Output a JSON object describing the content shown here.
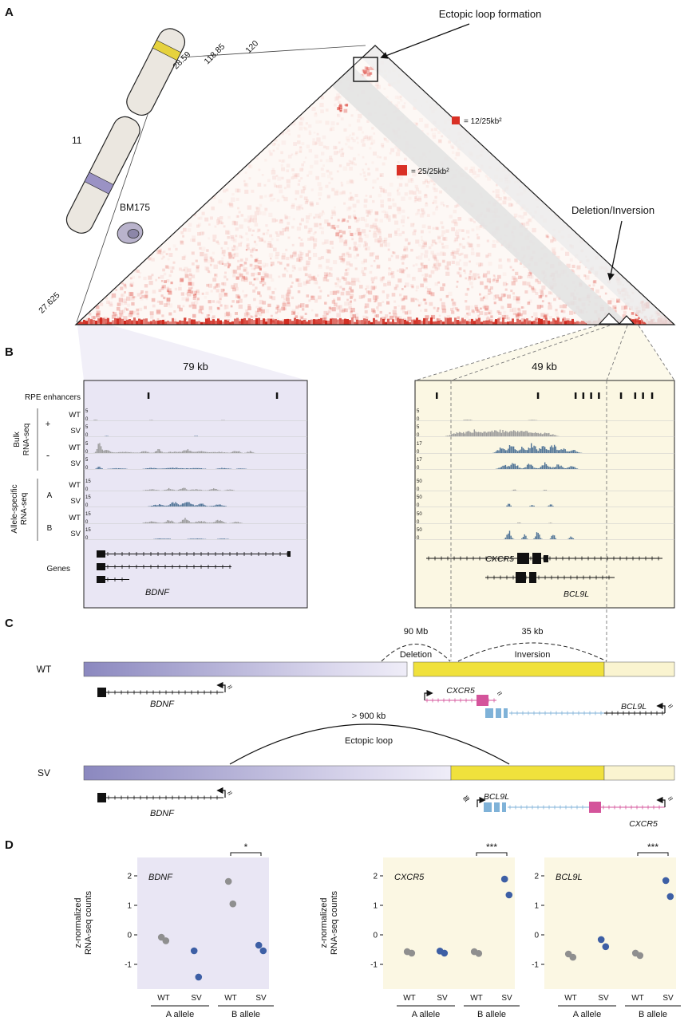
{
  "figure": {
    "panel_a_label": "A",
    "panel_b_label": "B",
    "panel_c_label": "C",
    "panel_d_label": "D"
  },
  "panel_a": {
    "chromosome_label": "11",
    "cell_line": "BM175",
    "ectopic_annotation": "Ectopic loop formation",
    "sv_annotation": "Deletion/Inversion",
    "legend_small": "= 12/25kb²",
    "legend_large": "= 25/25kb²",
    "heat_color": "#d93025",
    "tick_120": "120",
    "tick_118": "118.85",
    "tick_28": "28.59",
    "tick_27": "27.625"
  },
  "panel_b": {
    "left_title": "79 kb",
    "right_title": "49 kb",
    "enhancer_label": "RPE enhancers",
    "bulk_label_1": "Bulk",
    "bulk_label_2": "RNA-seq",
    "allele_label_1": "Allele-specific",
    "allele_label_2": "RNA-seq",
    "plus": "+",
    "minus": "-",
    "allele_a": "A",
    "allele_b": "B",
    "wt": "WT",
    "sv": "SV",
    "genes_label": "Genes",
    "gene_bdnf": "BDNF",
    "gene_cxcr5": "CXCR5",
    "gene_bcl9l": "BCL9L",
    "colors": {
      "wt_signal": "#9b9b9b",
      "sv_signal": "#4f7396",
      "enhancer": "#111111",
      "left_bg": "#e9e6f4",
      "right_bg": "#fbf7e3"
    },
    "enhancers_left": [
      0.285,
      0.86
    ],
    "enhancers_right": [
      0.08,
      0.47,
      0.615,
      0.645,
      0.675,
      0.705,
      0.79,
      0.845,
      0.875,
      0.91
    ],
    "tracks_left": [
      {
        "scale": "5",
        "color": "#9b9b9b",
        "peaks": [
          [
            0.05,
            0.012,
            0.07
          ],
          [
            0.3,
            0.01,
            0.05
          ],
          [
            0.62,
            0.01,
            0.05
          ]
        ]
      },
      {
        "scale": "5",
        "color": "#4f7396",
        "peaks": [
          [
            0.1,
            0.01,
            0.05
          ],
          [
            0.5,
            0.012,
            0.05
          ]
        ]
      },
      {
        "scale": "5",
        "color": "#9b9b9b",
        "peaks": [
          [
            0.066,
            0.012,
            1.0
          ],
          [
            0.1,
            0.02,
            0.32
          ],
          [
            0.18,
            0.05,
            0.13
          ],
          [
            0.27,
            0.02,
            0.2
          ],
          [
            0.33,
            0.015,
            0.38
          ],
          [
            0.4,
            0.04,
            0.16
          ],
          [
            0.46,
            0.02,
            0.42
          ],
          [
            0.52,
            0.03,
            0.2
          ],
          [
            0.6,
            0.04,
            0.13
          ],
          [
            0.68,
            0.02,
            0.27
          ],
          [
            0.74,
            0.015,
            0.2
          ]
        ]
      },
      {
        "scale": "5",
        "color": "#4f7396",
        "peaks": [
          [
            0.066,
            0.012,
            0.22
          ],
          [
            0.15,
            0.04,
            0.09
          ],
          [
            0.3,
            0.03,
            0.11
          ],
          [
            0.4,
            0.05,
            0.13
          ],
          [
            0.5,
            0.04,
            0.11
          ],
          [
            0.62,
            0.03,
            0.11
          ],
          [
            0.7,
            0.02,
            0.09
          ]
        ]
      },
      {
        "scale": "15",
        "color": "#9b9b9b",
        "peaks": [
          [
            0.3,
            0.03,
            0.13
          ],
          [
            0.38,
            0.02,
            0.24
          ],
          [
            0.44,
            0.015,
            0.38
          ],
          [
            0.5,
            0.03,
            0.16
          ],
          [
            0.58,
            0.02,
            0.22
          ],
          [
            0.65,
            0.02,
            0.13
          ]
        ]
      },
      {
        "scale": "15",
        "color": "#4f7396",
        "peaks": [
          [
            0.33,
            0.03,
            0.22
          ],
          [
            0.4,
            0.02,
            0.48
          ],
          [
            0.46,
            0.025,
            0.55
          ],
          [
            0.52,
            0.02,
            0.33
          ],
          [
            0.6,
            0.03,
            0.2
          ]
        ]
      },
      {
        "scale": "15",
        "color": "#9b9b9b",
        "peaks": [
          [
            0.3,
            0.03,
            0.2
          ],
          [
            0.38,
            0.02,
            0.33
          ],
          [
            0.45,
            0.02,
            0.5
          ],
          [
            0.52,
            0.03,
            0.25
          ],
          [
            0.6,
            0.025,
            0.33
          ],
          [
            0.68,
            0.02,
            0.17
          ]
        ]
      },
      {
        "scale": "15",
        "color": "#4f7396",
        "peaks": [
          [
            0.35,
            0.04,
            0.09
          ],
          [
            0.5,
            0.04,
            0.08
          ],
          [
            0.62,
            0.03,
            0.07
          ]
        ]
      }
    ],
    "tracks_right": [
      {
        "scale": "5",
        "color": "#9b9b9b",
        "peaks": [
          [
            0.2,
            0.02,
            0.08
          ],
          [
            0.45,
            0.02,
            0.06
          ]
        ]
      },
      {
        "scale": "5",
        "color": "#9b9b9b",
        "peaks": [
          [
            0.16,
            0.03,
            0.35
          ],
          [
            0.22,
            0.04,
            0.5
          ],
          [
            0.3,
            0.06,
            0.55
          ],
          [
            0.38,
            0.05,
            0.5
          ],
          [
            0.45,
            0.04,
            0.4
          ],
          [
            0.51,
            0.03,
            0.28
          ]
        ]
      },
      {
        "scale": "17",
        "color": "#4f7396",
        "peaks": [
          [
            0.33,
            0.018,
            0.55
          ],
          [
            0.37,
            0.015,
            0.9
          ],
          [
            0.41,
            0.018,
            0.65
          ],
          [
            0.45,
            0.018,
            0.95
          ],
          [
            0.49,
            0.015,
            0.75
          ],
          [
            0.53,
            0.018,
            0.85
          ],
          [
            0.57,
            0.015,
            0.55
          ],
          [
            0.61,
            0.018,
            0.38
          ]
        ]
      },
      {
        "scale": "17",
        "color": "#4f7396",
        "peaks": [
          [
            0.34,
            0.018,
            0.42
          ],
          [
            0.38,
            0.018,
            0.62
          ],
          [
            0.44,
            0.018,
            0.52
          ],
          [
            0.5,
            0.018,
            0.68
          ],
          [
            0.55,
            0.018,
            0.48
          ],
          [
            0.6,
            0.018,
            0.32
          ]
        ]
      },
      {
        "scale": "50",
        "color": "#9b9b9b",
        "peaks": [
          [
            0.38,
            0.008,
            0.12
          ],
          [
            0.5,
            0.008,
            0.09
          ]
        ]
      },
      {
        "scale": "50",
        "color": "#4f7396",
        "peaks": [
          [
            0.36,
            0.008,
            0.32
          ],
          [
            0.45,
            0.008,
            0.22
          ],
          [
            0.52,
            0.008,
            0.27
          ]
        ]
      },
      {
        "scale": "50",
        "color": "#9b9b9b",
        "peaks": [
          [
            0.4,
            0.008,
            0.09
          ],
          [
            0.52,
            0.008,
            0.07
          ]
        ]
      },
      {
        "scale": "50",
        "color": "#4f7396",
        "peaks": [
          [
            0.36,
            0.01,
            0.9
          ],
          [
            0.42,
            0.008,
            0.5
          ],
          [
            0.47,
            0.01,
            0.75
          ],
          [
            0.53,
            0.008,
            0.55
          ],
          [
            0.6,
            0.008,
            0.33
          ]
        ]
      }
    ]
  },
  "panel_c": {
    "wt_label": "WT",
    "sv_label": "SV",
    "deletion_size": "90 Mb",
    "deletion_word": "Deletion",
    "inversion_size": "35 kb",
    "inversion_word": "Inversion",
    "loop_size": "> 900 kb",
    "loop_word": "Ectopic loop",
    "gene_bdnf": "BDNF",
    "gene_cxcr5": "CXCR5",
    "gene_bcl9l": "BCL9L",
    "squiggle": "≈",
    "squiggle_triple": "≋",
    "colors": {
      "cxcr5": "#d4549b",
      "bcl9l": "#7fb2d8",
      "segment_yellow": "#f0e13c",
      "segment_cream": "#faf4d0",
      "purple_dark": "#8b88bf",
      "purple_light": "#efedf8"
    }
  },
  "panel_d": {
    "ylabel_1": "z-normalized",
    "ylabel_2": "RNA-seq counts"
  },
  "chart_data": [
    {
      "type": "scatter",
      "gene": "BDNF",
      "bg": "#e9e6f4",
      "sig": "*",
      "yticks": [
        2,
        1,
        0,
        -1
      ],
      "ylim": [
        -1.9,
        2.6
      ],
      "groups": [
        {
          "label": "A allele",
          "cols": [
            {
              "label": "WT",
              "color": "#8f8f8f",
              "values": [
                -0.08,
                -0.2
              ]
            },
            {
              "label": "SV",
              "color": "#3d5fa5",
              "values": [
                -0.54,
                -1.43
              ]
            }
          ]
        },
        {
          "label": "B allele",
          "cols": [
            {
              "label": "WT",
              "color": "#8f8f8f",
              "values": [
                1.81,
                1.05
              ]
            },
            {
              "label": "SV",
              "color": "#3d5fa5",
              "values": [
                -0.35,
                -0.54
              ]
            }
          ]
        }
      ]
    },
    {
      "type": "scatter",
      "gene": "CXCR5",
      "bg": "#fbf7e3",
      "sig": "***",
      "yticks": [
        2,
        1,
        0,
        -1
      ],
      "ylim": [
        -1.9,
        2.6
      ],
      "groups": [
        {
          "label": "A allele",
          "cols": [
            {
              "label": "WT",
              "color": "#8f8f8f",
              "values": [
                -0.57,
                -0.62
              ]
            },
            {
              "label": "SV",
              "color": "#3d5fa5",
              "values": [
                -0.55,
                -0.62
              ]
            }
          ]
        },
        {
          "label": "B allele",
          "cols": [
            {
              "label": "WT",
              "color": "#8f8f8f",
              "values": [
                -0.57,
                -0.63
              ]
            },
            {
              "label": "SV",
              "color": "#3d5fa5",
              "values": [
                1.89,
                1.35
              ]
            }
          ]
        }
      ]
    },
    {
      "type": "scatter",
      "gene": "BCL9L",
      "bg": "#fbf7e3",
      "sig": "***",
      "yticks": [
        2,
        1,
        0,
        -1
      ],
      "ylim": [
        -1.9,
        2.6
      ],
      "groups": [
        {
          "label": "A allele",
          "cols": [
            {
              "label": "WT",
              "color": "#8f8f8f",
              "values": [
                -0.65,
                -0.76
              ]
            },
            {
              "label": "SV",
              "color": "#3d5fa5",
              "values": [
                -0.16,
                -0.4
              ]
            }
          ]
        },
        {
          "label": "B allele",
          "cols": [
            {
              "label": "WT",
              "color": "#8f8f8f",
              "values": [
                -0.62,
                -0.7
              ]
            },
            {
              "label": "SV",
              "color": "#3d5fa5",
              "values": [
                1.84,
                1.3
              ]
            }
          ]
        }
      ]
    }
  ]
}
